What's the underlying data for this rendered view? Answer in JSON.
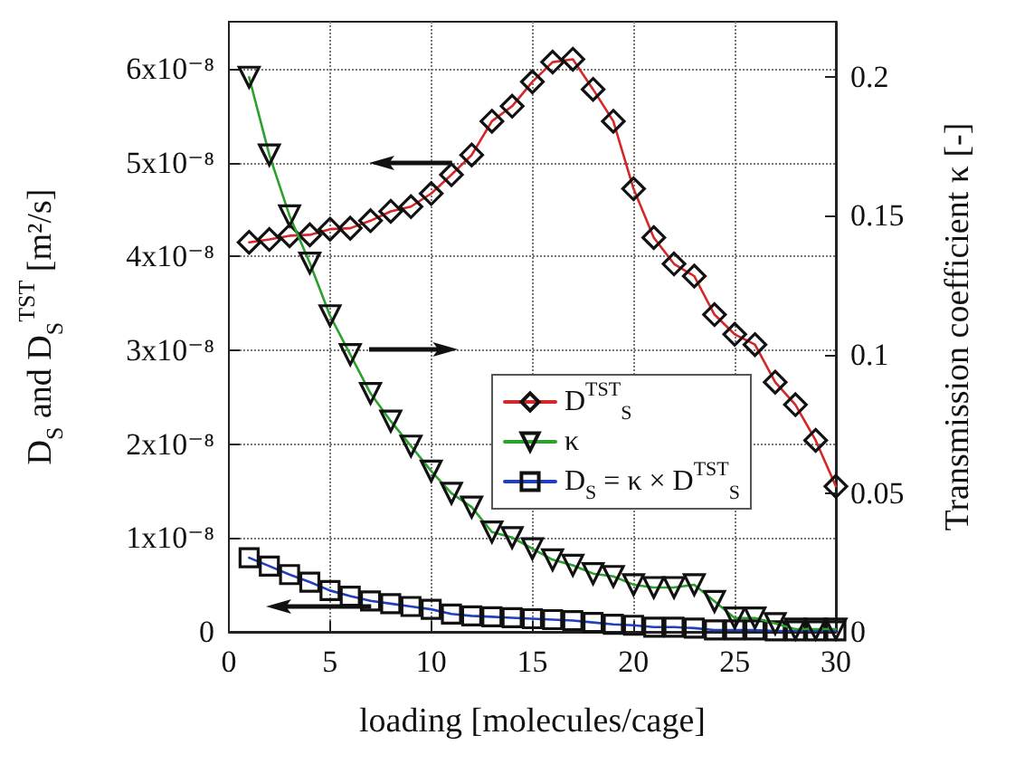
{
  "chart_data": {
    "type": "line",
    "xlabel": "loading [molecules/cage]",
    "ylabel": "D$_{S}$ and D$_{S}$$^{TST}$ [m²/s]",
    "y2label": "Transmission coefficient κ [-]",
    "x": [
      1,
      2,
      3,
      4,
      5,
      6,
      7,
      8,
      9,
      10,
      11,
      12,
      13,
      14,
      15,
      16,
      17,
      18,
      19,
      20,
      21,
      22,
      23,
      24,
      25,
      26,
      27,
      28,
      29,
      30
    ],
    "series": [
      {
        "name": "D$^{TST}$$_{S}$",
        "color": "#d62728",
        "marker": "diamond",
        "values": [
          4.15e-08,
          4.18e-08,
          4.22e-08,
          4.23e-08,
          4.29e-08,
          4.3e-08,
          4.38e-08,
          4.48e-08,
          4.53e-08,
          4.67e-08,
          4.87e-08,
          5.08e-08,
          5.44e-08,
          5.6e-08,
          5.86e-08,
          6.07e-08,
          6.1e-08,
          5.78e-08,
          5.44e-08,
          4.72e-08,
          4.2e-08,
          3.92e-08,
          3.79e-08,
          3.38e-08,
          3.17e-08,
          3.06e-08,
          2.66e-08,
          2.42e-08,
          2.04e-08,
          1.55e-08
        ]
      },
      {
        "name": "κ",
        "color": "#2ca02c",
        "marker": "triangle",
        "axis": "y2",
        "values": [
          0.2,
          0.172,
          0.15,
          0.133,
          0.114,
          0.1,
          0.086,
          0.076,
          0.067,
          0.058,
          0.05,
          0.045,
          0.036,
          0.034,
          0.03,
          0.026,
          0.024,
          0.021,
          0.02,
          0.017,
          0.016,
          0.016,
          0.017,
          0.011,
          0.005,
          0.005,
          0.003,
          0.001,
          0.001,
          0.001
        ]
      },
      {
        "name": "D$_{S}$ = κ × D$^{TST}$$_{S}$",
        "color": "#1f3fbf",
        "marker": "square",
        "values": [
          7.9e-09,
          7e-09,
          6.1e-09,
          5.3e-09,
          4.4e-09,
          3.8e-09,
          3.3e-09,
          3e-09,
          2.7e-09,
          2.4e-09,
          1.9e-09,
          1.7e-09,
          1.6e-09,
          1.5e-09,
          1.4e-09,
          1.3e-09,
          1.2e-09,
          1e-09,
          8e-10,
          7e-10,
          5e-10,
          5e-10,
          4e-10,
          2e-10,
          2e-10,
          2e-10,
          1e-10,
          1e-10,
          1e-10,
          1e-10
        ]
      }
    ],
    "xlim": [
      0,
      30
    ],
    "xticks": [
      0,
      5,
      10,
      15,
      20,
      25,
      30
    ],
    "ylim": [
      0,
      6.5e-08
    ],
    "yticks": [
      0,
      {
        "value": 1e-08,
        "label": "1x10⁻⁸"
      },
      {
        "value": 2e-08,
        "label": "2x10⁻⁸"
      },
      {
        "value": 3e-08,
        "label": "3x10⁻⁸"
      },
      {
        "value": 4e-08,
        "label": "4x10⁻⁸"
      },
      {
        "value": 5e-08,
        "label": "5x10⁻⁸"
      },
      {
        "value": 6e-08,
        "label": "6x10⁻⁸"
      }
    ],
    "y2lim": [
      0,
      0.22
    ],
    "y2ticks": [
      0,
      0.05,
      0.1,
      0.15,
      0.2
    ],
    "grid": true,
    "legend": "right",
    "line_style": "solid"
  }
}
